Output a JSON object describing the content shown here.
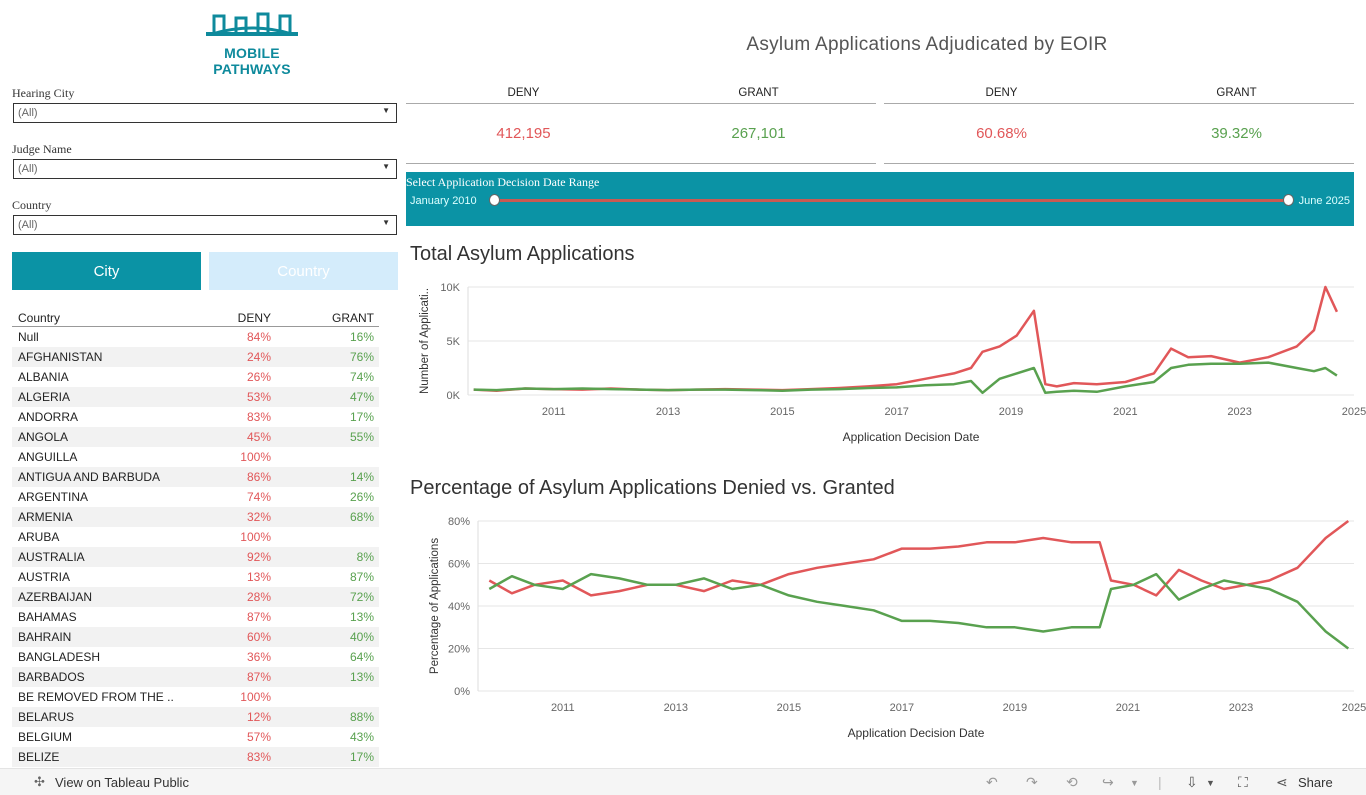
{
  "logo": {
    "line1": "MOBILE",
    "line2": "PATHWAYS"
  },
  "title": "Asylum Applications Adjudicated by EOIR",
  "filters": [
    {
      "label": "Hearing City",
      "value": "(All)"
    },
    {
      "label": "Judge Name",
      "value": "(All)"
    },
    {
      "label": "Country",
      "value": "(All)"
    }
  ],
  "toggle": {
    "city": "City",
    "country": "Country"
  },
  "kpi_counts": {
    "deny_label": "DENY",
    "grant_label": "GRANT",
    "deny": "412,195",
    "grant": "267,101"
  },
  "kpi_pcts": {
    "deny_label": "DENY",
    "grant_label": "GRANT",
    "deny": "60.68%",
    "grant": "39.32%"
  },
  "slider": {
    "label": "Select Application Decision Date Range",
    "from": "January 2010",
    "to": "June 2025"
  },
  "table": {
    "headers": [
      "Country",
      "DENY",
      "GRANT"
    ],
    "rows": [
      [
        "Null",
        "84%",
        "16%"
      ],
      [
        "AFGHANISTAN",
        "24%",
        "76%"
      ],
      [
        "ALBANIA",
        "26%",
        "74%"
      ],
      [
        "ALGERIA",
        "53%",
        "47%"
      ],
      [
        "ANDORRA",
        "83%",
        "17%"
      ],
      [
        "ANGOLA",
        "45%",
        "55%"
      ],
      [
        "ANGUILLA",
        "100%",
        ""
      ],
      [
        "ANTIGUA AND BARBUDA",
        "86%",
        "14%"
      ],
      [
        "ARGENTINA",
        "74%",
        "26%"
      ],
      [
        "ARMENIA",
        "32%",
        "68%"
      ],
      [
        "ARUBA",
        "100%",
        ""
      ],
      [
        "AUSTRALIA",
        "92%",
        "8%"
      ],
      [
        "AUSTRIA",
        "13%",
        "87%"
      ],
      [
        "AZERBAIJAN",
        "28%",
        "72%"
      ],
      [
        "BAHAMAS",
        "87%",
        "13%"
      ],
      [
        "BAHRAIN",
        "60%",
        "40%"
      ],
      [
        "BANGLADESH",
        "36%",
        "64%"
      ],
      [
        "BARBADOS",
        "87%",
        "13%"
      ],
      [
        "BE REMOVED FROM THE ..",
        "100%",
        ""
      ],
      [
        "BELARUS",
        "12%",
        "88%"
      ],
      [
        "BELGIUM",
        "57%",
        "43%"
      ],
      [
        "BELIZE",
        "83%",
        "17%"
      ]
    ]
  },
  "chart_data": [
    {
      "type": "line",
      "title": "Total Asylum Applications",
      "xlabel": "Application Decision Date",
      "ylabel": "Number of Applicati..",
      "x_ticks": [
        "2011",
        "2013",
        "2015",
        "2017",
        "2019",
        "2021",
        "2023",
        "2025"
      ],
      "y_ticks": [
        "0K",
        "5K",
        "10K"
      ],
      "ylim": [
        0,
        10000
      ],
      "xlim": [
        2010.0,
        2025.5
      ],
      "series": [
        {
          "color": "#e15759",
          "x": [
            2010.1,
            2010.5,
            2011.0,
            2011.5,
            2012.0,
            2012.5,
            2013.0,
            2013.5,
            2014.0,
            2014.5,
            2015.0,
            2015.5,
            2016.0,
            2016.5,
            2017.0,
            2017.5,
            2018.0,
            2018.5,
            2018.8,
            2019.0,
            2019.3,
            2019.6,
            2019.9,
            2020.1,
            2020.3,
            2020.6,
            2021.0,
            2021.5,
            2022.0,
            2022.3,
            2022.6,
            2023.0,
            2023.5,
            2024.0,
            2024.5,
            2024.8,
            2025.0,
            2025.2
          ],
          "y": [
            500,
            400,
            600,
            550,
            500,
            600,
            500,
            450,
            500,
            550,
            500,
            450,
            550,
            650,
            800,
            1000,
            1500,
            2000,
            2500,
            4000,
            4500,
            5500,
            7800,
            1000,
            800,
            1100,
            1000,
            1200,
            2000,
            4300,
            3500,
            3600,
            3000,
            3500,
            4500,
            6000,
            10000,
            7700
          ]
        },
        {
          "color": "#59a14f",
          "x": [
            2010.1,
            2010.5,
            2011.0,
            2011.5,
            2012.0,
            2012.5,
            2013.0,
            2013.5,
            2014.0,
            2014.5,
            2015.0,
            2015.5,
            2016.0,
            2016.5,
            2017.0,
            2017.5,
            2018.0,
            2018.5,
            2018.8,
            2019.0,
            2019.3,
            2019.6,
            2019.9,
            2020.1,
            2020.3,
            2020.6,
            2021.0,
            2021.5,
            2022.0,
            2022.3,
            2022.6,
            2023.0,
            2023.5,
            2024.0,
            2024.5,
            2024.8,
            2025.0,
            2025.2
          ],
          "y": [
            500,
            450,
            600,
            550,
            600,
            550,
            500,
            450,
            500,
            500,
            450,
            400,
            500,
            550,
            650,
            700,
            900,
            1000,
            1300,
            200,
            1500,
            2000,
            2500,
            200,
            300,
            400,
            300,
            800,
            1200,
            2500,
            2800,
            2900,
            2900,
            3000,
            2500,
            2200,
            2500,
            1800
          ]
        }
      ]
    },
    {
      "type": "line",
      "title": "Percentage of Asylum Applications Denied vs. Granted",
      "xlabel": "Application Decision Date",
      "ylabel": "Percentage of Applications",
      "x_ticks": [
        "2011",
        "2013",
        "2015",
        "2017",
        "2019",
        "2021",
        "2023",
        "2025"
      ],
      "y_ticks": [
        "0%",
        "20%",
        "40%",
        "60%",
        "80%"
      ],
      "ylim": [
        0,
        80
      ],
      "xlim": [
        2010.0,
        2025.5
      ],
      "series": [
        {
          "color": "#e15759",
          "x": [
            2010.2,
            2010.6,
            2011.0,
            2011.5,
            2012.0,
            2012.5,
            2013.0,
            2013.5,
            2014.0,
            2014.5,
            2015.0,
            2015.5,
            2016.0,
            2016.5,
            2017.0,
            2017.5,
            2018.0,
            2018.5,
            2019.0,
            2019.5,
            2020.0,
            2020.5,
            2021.0,
            2021.2,
            2021.6,
            2022.0,
            2022.4,
            2022.8,
            2023.2,
            2023.6,
            2024.0,
            2024.5,
            2025.0,
            2025.4
          ],
          "y": [
            52,
            46,
            50,
            52,
            45,
            47,
            50,
            50,
            47,
            52,
            50,
            55,
            58,
            60,
            62,
            67,
            67,
            68,
            70,
            70,
            72,
            70,
            70,
            52,
            50,
            45,
            57,
            52,
            48,
            50,
            52,
            58,
            72,
            80
          ]
        },
        {
          "color": "#59a14f",
          "x": [
            2010.2,
            2010.6,
            2011.0,
            2011.5,
            2012.0,
            2012.5,
            2013.0,
            2013.5,
            2014.0,
            2014.5,
            2015.0,
            2015.5,
            2016.0,
            2016.5,
            2017.0,
            2017.5,
            2018.0,
            2018.5,
            2019.0,
            2019.5,
            2020.0,
            2020.5,
            2021.0,
            2021.2,
            2021.6,
            2022.0,
            2022.4,
            2022.8,
            2023.2,
            2023.6,
            2024.0,
            2024.5,
            2025.0,
            2025.4
          ],
          "y": [
            48,
            54,
            50,
            48,
            55,
            53,
            50,
            50,
            53,
            48,
            50,
            45,
            42,
            40,
            38,
            33,
            33,
            32,
            30,
            30,
            28,
            30,
            30,
            48,
            50,
            55,
            43,
            48,
            52,
            50,
            48,
            42,
            28,
            20
          ]
        }
      ]
    }
  ],
  "footer": {
    "tableau": "View on Tableau Public",
    "share": "Share"
  }
}
